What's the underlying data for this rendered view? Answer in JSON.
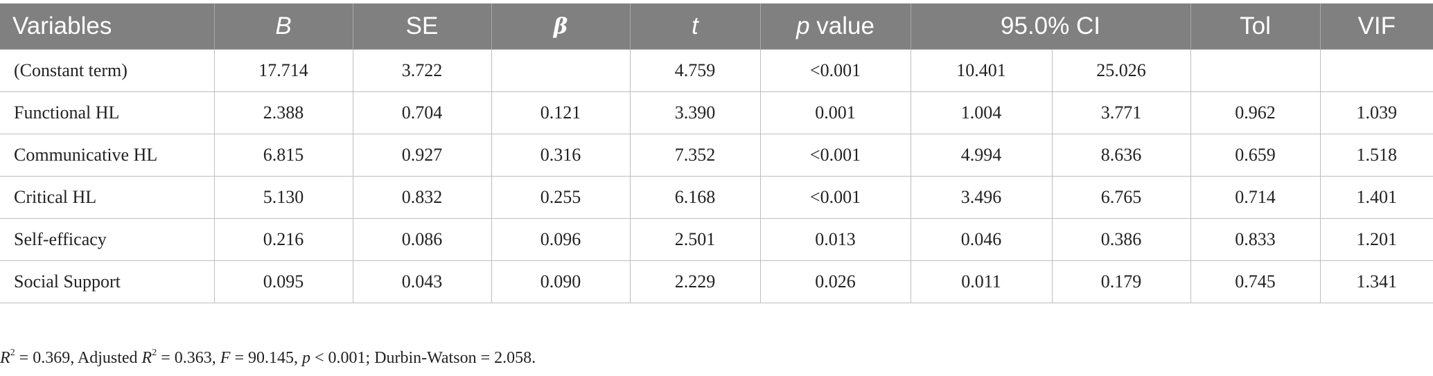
{
  "table": {
    "headers": {
      "variables": "Variables",
      "b": "B",
      "se": "SE",
      "beta": "β",
      "t": "t",
      "p_italic": "p",
      "p_rest": " value",
      "ci": "95.0% CI",
      "tol": "Tol",
      "vif": "VIF"
    },
    "rows": [
      {
        "variable": "(Constant term)",
        "b": "17.714",
        "se": "3.722",
        "beta": "",
        "t": "4.759",
        "p": "<0.001",
        "ci_low": "10.401",
        "ci_high": "25.026",
        "tol": "",
        "vif": ""
      },
      {
        "variable": "Functional HL",
        "b": "2.388",
        "se": "0.704",
        "beta": "0.121",
        "t": "3.390",
        "p": "0.001",
        "ci_low": "1.004",
        "ci_high": "3.771",
        "tol": "0.962",
        "vif": "1.039"
      },
      {
        "variable": "Communicative HL",
        "b": "6.815",
        "se": "0.927",
        "beta": "0.316",
        "t": "7.352",
        "p": "<0.001",
        "ci_low": "4.994",
        "ci_high": "8.636",
        "tol": "0.659",
        "vif": "1.518"
      },
      {
        "variable": "Critical HL",
        "b": "5.130",
        "se": "0.832",
        "beta": "0.255",
        "t": "6.168",
        "p": "<0.001",
        "ci_low": "3.496",
        "ci_high": "6.765",
        "tol": "0.714",
        "vif": "1.401"
      },
      {
        "variable": "Self-efficacy",
        "b": "0.216",
        "se": "0.086",
        "beta": "0.096",
        "t": "2.501",
        "p": "0.013",
        "ci_low": "0.046",
        "ci_high": "0.386",
        "tol": "0.833",
        "vif": "1.201"
      },
      {
        "variable": "Social Support",
        "b": "0.095",
        "se": "0.043",
        "beta": "0.090",
        "t": "2.229",
        "p": "0.026",
        "ci_low": "0.011",
        "ci_high": "0.179",
        "tol": "0.745",
        "vif": "1.341"
      }
    ]
  },
  "footnote": {
    "r2_label": "R",
    "r2_sup": "2",
    "r2_value": " = 0.369, Adjusted ",
    "adj_r2_label": "R",
    "adj_r2_sup": "2",
    "adj_r2_value": " = 0.363, ",
    "f_label": "F",
    "f_value": " = 90.145, ",
    "p_label": "p",
    "p_value": " < 0.001; Durbin-Watson = 2.058."
  },
  "colors": {
    "header_background": "#808080",
    "header_text": "#ffffff",
    "grid_line": "#bdbdbd"
  }
}
